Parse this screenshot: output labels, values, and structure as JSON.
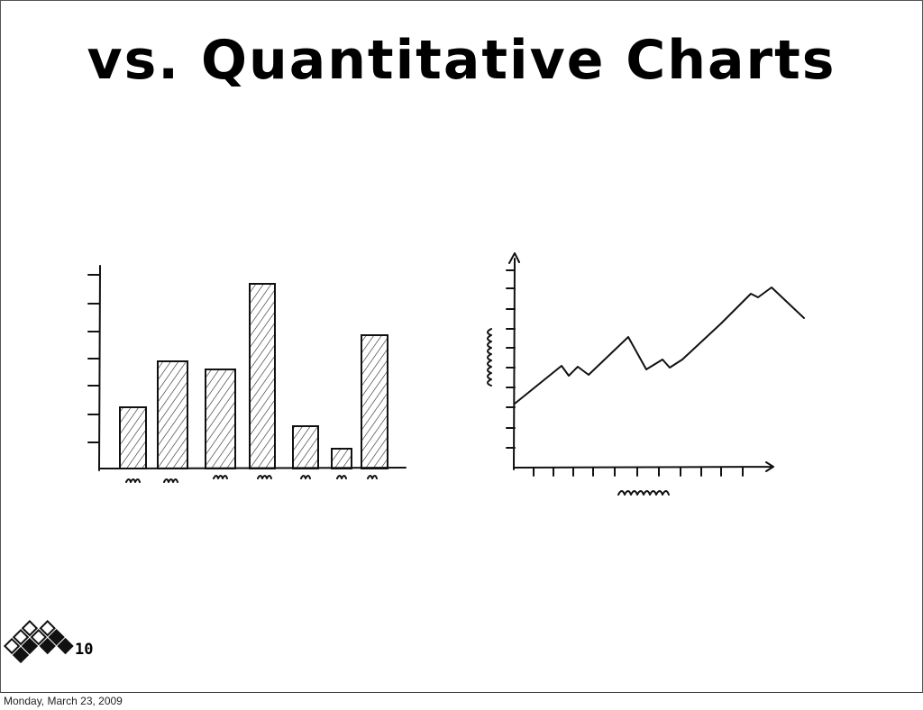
{
  "slide": {
    "title": "vs. Quantitative Charts",
    "page_number": "10"
  },
  "footer": {
    "date": "Monday, March 23, 2009"
  }
}
